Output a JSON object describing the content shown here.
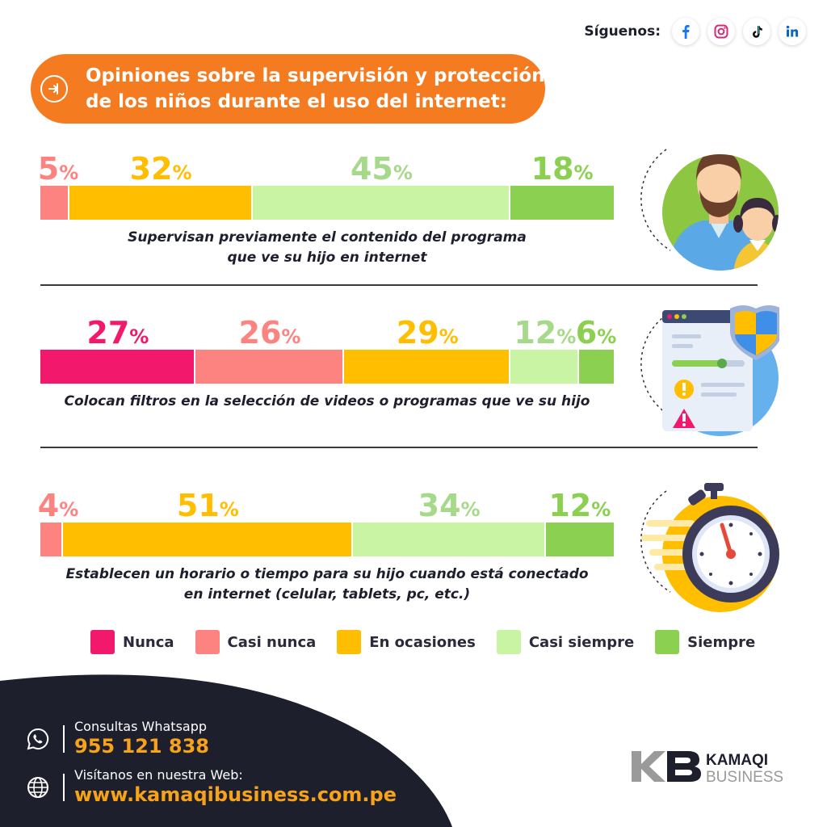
{
  "social": {
    "label": "Síguenos:",
    "icons": [
      "facebook-icon",
      "instagram-icon",
      "tiktok-icon",
      "linkedin-icon"
    ]
  },
  "title": {
    "line1": "Opiniones sobre la supervisión y protección",
    "line2": "de los niños durante el uso del internet:"
  },
  "colors": {
    "nunca": "#f2186b",
    "casi_nunca": "#fd8381",
    "en_ocasiones": "#ffbe00",
    "casi_siempre": "#c8f4a4",
    "siempre": "#8bd050",
    "orange": "#f47b20",
    "dark": "#1e1f2d"
  },
  "chart_data": {
    "type": "bar",
    "stacked": true,
    "orientation": "horizontal",
    "unit": "%",
    "categories": [
      "Nunca",
      "Casi nunca",
      "En ocasiones",
      "Casi siempre",
      "Siempre"
    ],
    "rows": [
      {
        "label_lines": [
          "Supervisan previamente el contenido del programa",
          "que ve su hijo en internet"
        ],
        "series": [
          {
            "category": "Casi nunca",
            "value": 5
          },
          {
            "category": "En ocasiones",
            "value": 32
          },
          {
            "category": "Casi siempre",
            "value": 45
          },
          {
            "category": "Siempre",
            "value": 18
          }
        ]
      },
      {
        "label_lines": [
          "Colocan filtros en la selección de videos o programas que ve su hijo"
        ],
        "series": [
          {
            "category": "Nunca",
            "value": 27
          },
          {
            "category": "Casi nunca",
            "value": 26
          },
          {
            "category": "En ocasiones",
            "value": 29
          },
          {
            "category": "Casi siempre",
            "value": 12
          },
          {
            "category": "Siempre",
            "value": 6
          }
        ]
      },
      {
        "label_lines": [
          "Establecen un horario o tiempo para su hijo cuando está conectado",
          "en internet (celular, tablets, pc, etc.)"
        ],
        "series": [
          {
            "category": "Casi nunca",
            "value": 4
          },
          {
            "category": "En ocasiones",
            "value": 51
          },
          {
            "category": "Casi siempre",
            "value": 34
          },
          {
            "category": "Siempre",
            "value": 12
          }
        ]
      }
    ],
    "legend": [
      "Nunca",
      "Casi nunca",
      "En ocasiones",
      "Casi siempre",
      "Siempre"
    ],
    "legend_position": "bottom"
  },
  "illustrations": [
    "parent-child-icon",
    "shield-browser-icon",
    "stopwatch-icon"
  ],
  "footer": {
    "whatsapp_label": "Consultas Whatsapp",
    "whatsapp_number": "955 121 838",
    "web_label": "Visítanos en nuestra Web:",
    "web_url": "www.kamaqibusiness.com.pe",
    "brand_line1": "KAMAQI",
    "brand_line2": "BUSINESS",
    "brand_mark": "KB"
  }
}
